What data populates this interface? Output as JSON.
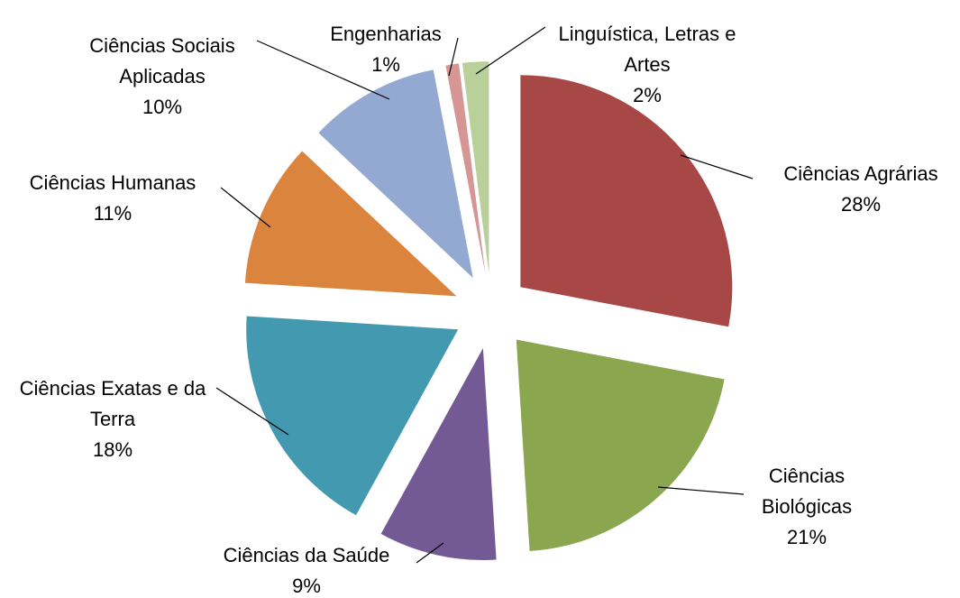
{
  "chart_data": {
    "type": "pie",
    "categories": [
      "Ciências Agrárias",
      "Ciências Biológicas",
      "Ciências da Saúde",
      "Ciências Exatas e da Terra",
      "Ciências Humanas",
      "Ciências Sociais Aplicadas",
      "Engenharias",
      "Linguística, Letras e Artes"
    ],
    "values": [
      28,
      21,
      9,
      18,
      11,
      10,
      1,
      2
    ],
    "value_labels": [
      "28%",
      "21%",
      "9%",
      "18%",
      "11%",
      "10%",
      "1%",
      "2%"
    ],
    "colors": [
      "#a84846",
      "#8aa64f",
      "#735a94",
      "#4299b0",
      "#db843d",
      "#94a9d2",
      "#d69695",
      "#b9d09a"
    ]
  }
}
